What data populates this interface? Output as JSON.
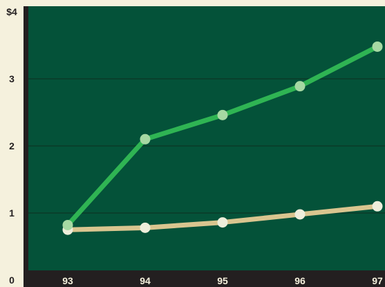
{
  "chart_data": {
    "type": "line",
    "x": [
      "93",
      "94",
      "95",
      "96",
      "97"
    ],
    "series": [
      {
        "values": [
          0.82,
          2.1,
          2.46,
          2.89,
          3.48
        ],
        "color": "#2fb453",
        "marker_color": "#a6d9a3"
      },
      {
        "values": [
          0.75,
          0.78,
          0.86,
          0.98,
          1.1
        ],
        "color": "#d9c58f",
        "marker_color": "#eeeedb"
      }
    ],
    "ylim": [
      0,
      4
    ],
    "y_ticks": [
      {
        "value": 4,
        "label": "$4"
      },
      {
        "value": 3,
        "label": "3"
      },
      {
        "value": 2,
        "label": "2"
      },
      {
        "value": 1,
        "label": "1"
      },
      {
        "value": 0,
        "label": "0"
      }
    ],
    "grid": true,
    "colors": {
      "plot_background": "#045239",
      "frame": "#231f20",
      "page_background": "#f5f1dd",
      "gridline": "#0b3a28"
    }
  }
}
